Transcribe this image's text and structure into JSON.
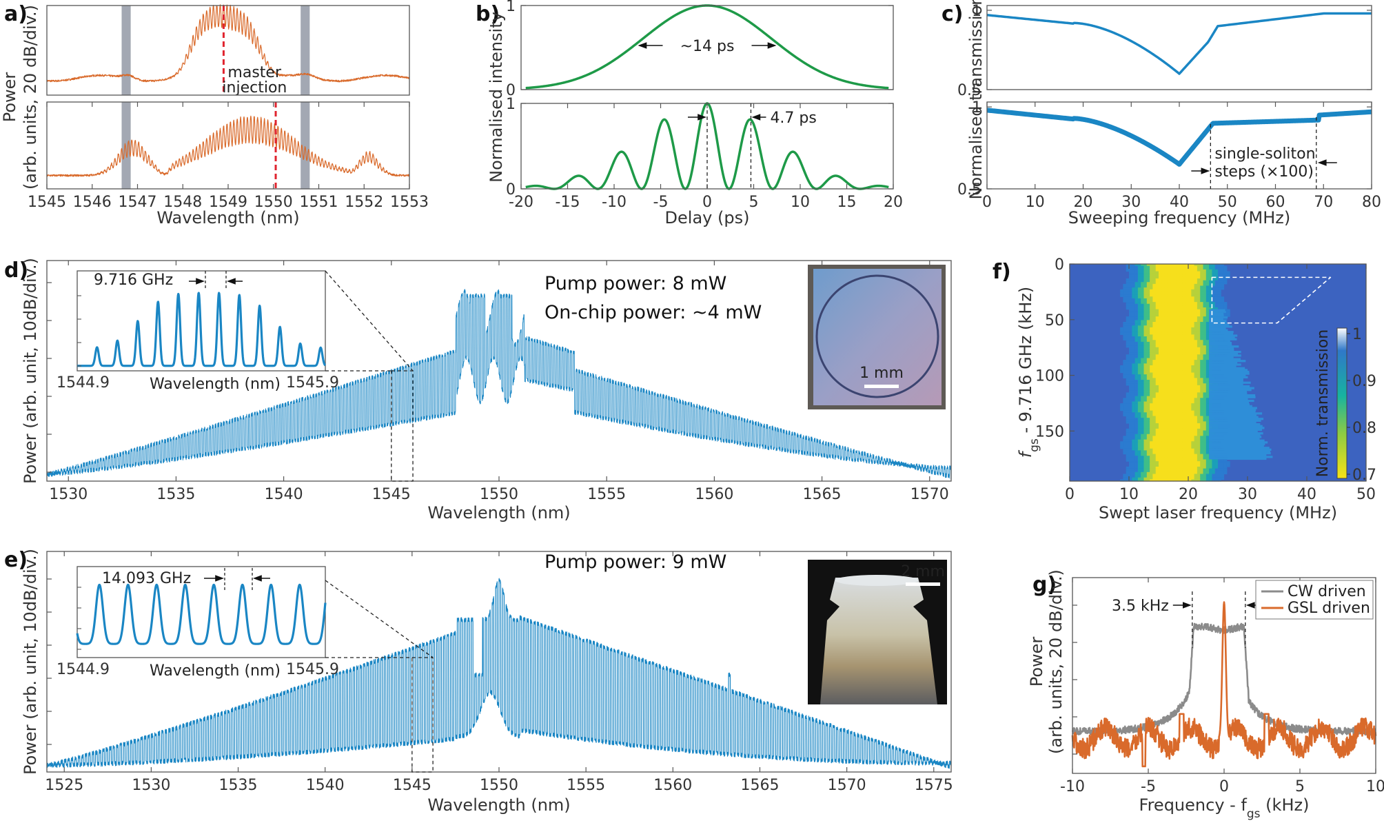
{
  "colors": {
    "orange": "#d96a2b",
    "red": "#e0242f",
    "green": "#1e9a48",
    "blue": "#1a86c4",
    "gray": "#8b8b8b",
    "band": "#a3a8b3"
  },
  "chart_data": [
    {
      "id": "a",
      "panel_label": "a)",
      "type": "line",
      "xlabel": "Wavelength (nm)",
      "ylabel_line1": "Power",
      "ylabel_line2": "(arb. units, 20 dB/div.)",
      "xlim": [
        1545,
        1553
      ],
      "xticks": [
        "1545",
        "1546",
        "1547",
        "1548",
        "1549",
        "1550",
        "1551",
        "1552",
        "1553"
      ],
      "highlight_bands": [
        [
          1546.65,
          1546.85
        ],
        [
          1550.6,
          1550.8
        ]
      ],
      "annotations": {
        "master_line1": "master",
        "master_line2": "injection",
        "upper_marker_x": 1548.9,
        "lower_marker_x": 1550.05
      }
    },
    {
      "id": "b",
      "panel_label": "b)",
      "type": "line",
      "xlabel": "Delay (ps)",
      "ylabel": "Normalised intensity",
      "xlim": [
        -20,
        20
      ],
      "xticks": [
        "-20",
        "-15",
        "-10",
        "-5",
        "0",
        "5",
        "10",
        "15",
        "20"
      ],
      "upper_yticks": [
        "0",
        "1"
      ],
      "lower_yticks": [
        "0",
        "1"
      ],
      "upper_annotation": "~14 ps",
      "lower_annotation": "4.7 ps",
      "upper_fwhm_ps": 14,
      "lower_peak_spacing_ps": 4.7
    },
    {
      "id": "c",
      "panel_label": "c)",
      "type": "line",
      "xlabel": "Sweeping frequency (MHz)",
      "ylabel": "Normalised transmission",
      "xlim": [
        0,
        80
      ],
      "xticks": [
        "0",
        "10",
        "20",
        "30",
        "40",
        "50",
        "60",
        "70",
        "80"
      ],
      "upper_yticks": [
        "0.5",
        "1"
      ],
      "lower_yticks": [
        "0.5",
        "1"
      ],
      "annotation_line1": "single-soliton",
      "annotation_line2": "steps (×100)",
      "minimum": {
        "x": 40,
        "y": 0.6
      }
    },
    {
      "id": "d",
      "panel_label": "d)",
      "type": "line",
      "xlabel": "Wavelength (nm)",
      "ylabel": "Power (arb. unit, 10dB/div.)",
      "xlim": [
        1529,
        1571
      ],
      "xticks": [
        "1530",
        "1535",
        "1540",
        "1545",
        "1550",
        "1555",
        "1560",
        "1565",
        "1570"
      ],
      "pump_text": "Pump power: 8 mW",
      "onchip_text": "On-chip power: ~4 mW",
      "inset": {
        "spacing": "9.716 GHz",
        "xmin": "1544.9",
        "xmax": "1545.9",
        "xlabel": "Wavelength (nm)"
      },
      "photo_scale": "1 mm"
    },
    {
      "id": "e",
      "panel_label": "e)",
      "type": "line",
      "xlabel": "Wavelength (nm)",
      "ylabel": "Power (arb. unit, 10dB/div.)",
      "xlim": [
        1524,
        1576
      ],
      "xticks": [
        "1525",
        "1530",
        "1535",
        "1540",
        "1545",
        "1550",
        "1555",
        "1560",
        "1565",
        "1570",
        "1575"
      ],
      "pump_text": "Pump power: 9 mW",
      "inset": {
        "spacing": "14.093 GHz",
        "xmin": "1544.9",
        "xmax": "1545.9",
        "xlabel": "Wavelength (nm)"
      },
      "photo_scale": "2 mm"
    },
    {
      "id": "f",
      "panel_label": "f)",
      "type": "heatmap",
      "xlabel": "Swept laser frequency (MHz)",
      "ylabel_main": "f",
      "ylabel_sub": "gs",
      "ylabel_rest": " - 9.716 GHz (kHz)",
      "xlim": [
        0,
        50
      ],
      "ylim": [
        0,
        195
      ],
      "xticks": [
        "0",
        "10",
        "20",
        "30",
        "40",
        "50"
      ],
      "yticks": [
        "0",
        "50",
        "100",
        "150"
      ],
      "colorbar": {
        "label": "Norm. transmission",
        "ticks": [
          "1",
          "0.9",
          "0.8",
          "0.7"
        ]
      }
    },
    {
      "id": "g",
      "panel_label": "g)",
      "type": "line",
      "xlabel_main": "Frequency - f",
      "xlabel_sub": "gs",
      "xlabel_rest": " (kHz)",
      "ylabel_line1": "Power",
      "ylabel_line2": "(arb. units, 20 dB/div.)",
      "xlim": [
        -10,
        10
      ],
      "xticks": [
        "-10",
        "-5",
        "0",
        "5",
        "10"
      ],
      "annotation": "3.5 kHz",
      "linewidth_khz": 3.5,
      "series": [
        {
          "name": "CW driven"
        },
        {
          "name": "GSL driven"
        }
      ]
    }
  ]
}
